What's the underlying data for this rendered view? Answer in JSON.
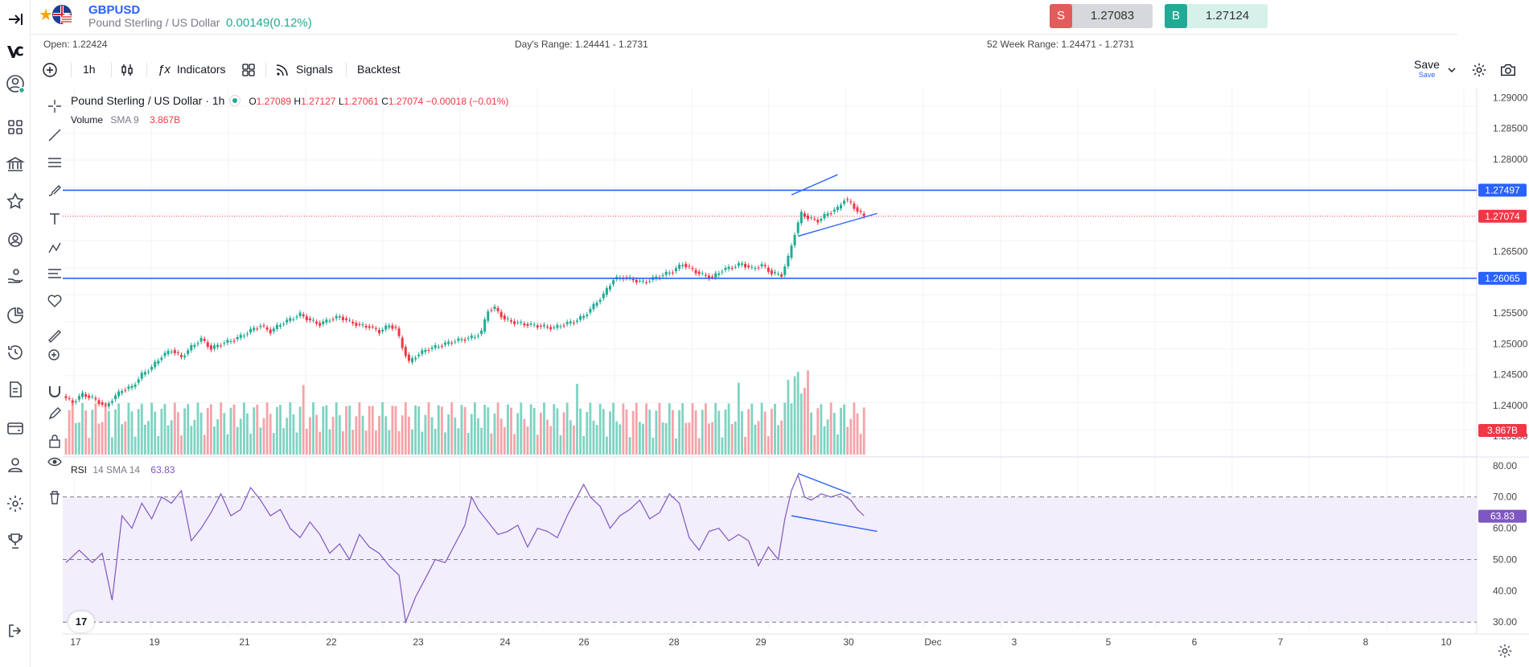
{
  "header": {
    "symbol": "GBPUSD",
    "symbol_name": "Pound Sterling / US Dollar",
    "change": "0.00149(0.12%)",
    "sell": {
      "tag": "S",
      "price": "1.27083"
    },
    "buy": {
      "tag": "B",
      "price": "1.27124"
    }
  },
  "stats": {
    "open": "Open: 1.22424",
    "days_range": "Day's Range: 1.24441 - 1.2731",
    "week52_range": "52 Week Range: 1.24471 - 1.2731"
  },
  "toolbar": {
    "interval": "1h",
    "indicators": "Indicators",
    "signals": "Signals",
    "backtest": "Backtest",
    "save": "Save",
    "save_sub": "Save"
  },
  "legend": {
    "title": "Pound Sterling / US Dollar · 1h",
    "o_label": "O",
    "o": "1.27089",
    "h_label": "H",
    "h": "1.27127",
    "l_label": "L",
    "l": "1.27061",
    "c_label": "C",
    "c": "1.27074",
    "chg": "−0.00018 (−0.01%)",
    "volume_label": "Volume",
    "volume_sma": "SMA 9",
    "volume_value": "3.867B",
    "rsi_label": "RSI",
    "rsi_params": "14 SMA 14",
    "rsi_value": "63.83"
  },
  "colors": {
    "up": "#22ab94",
    "down": "#f23645",
    "up_volume": "#7fd3c2",
    "down_volume": "#f5a3a8",
    "level_line": "#2962ff",
    "rsi_line": "#7e57c2",
    "rsi_band": "#f3eefb"
  },
  "icons": {
    "sidebar": [
      "collapse-icon",
      "logo-icon",
      "account-icon",
      "apps-icon",
      "bank-icon",
      "star-icon",
      "wallet-icon",
      "hand-coins-icon",
      "pie-chart-icon",
      "history-icon",
      "document-icon",
      "card-icon",
      "profile-icon",
      "settings-icon",
      "trophy-icon",
      "logout-icon"
    ],
    "toolbar": [
      "add-icon",
      "candles-icon",
      "fx-icon",
      "layout-icon",
      "signals-icon",
      "dropdown-icon",
      "settings-icon",
      "camera-icon"
    ]
  },
  "chart_data": {
    "type": "line",
    "price_axis": {
      "ticks": [
        "1.29000",
        "1.28500",
        "1.28000",
        "1.26500",
        "1.25500",
        "1.25000",
        "1.24500",
        "1.24000",
        "1.23500"
      ],
      "range": [
        1.232,
        1.2915
      ]
    },
    "rsi_axis": {
      "ticks": [
        "80.00",
        "70.00",
        "60.00",
        "50.00",
        "40.00",
        "30.00"
      ],
      "range": [
        28,
        82
      ]
    },
    "x_labels": [
      "17",
      "19",
      "21",
      "22",
      "23",
      "24",
      "26",
      "28",
      "29",
      "30",
      "Dec",
      "3",
      "5",
      "6",
      "7",
      "8",
      "10"
    ],
    "price_markers": [
      {
        "label": "1.27497",
        "value": 1.27497,
        "kind": "level"
      },
      {
        "label": "1.27074",
        "value": 1.27074,
        "kind": "last"
      },
      {
        "label": "1.26065",
        "value": 1.26065,
        "kind": "level"
      }
    ],
    "volume_marker": "3.867B",
    "rsi_marker": {
      "label": "63.83",
      "value": 63.83
    },
    "rsi_levels": [
      70,
      50,
      30
    ],
    "price_path": [
      [
        0,
        1.2415
      ],
      [
        3,
        1.2405
      ],
      [
        6,
        1.2418
      ],
      [
        9,
        1.2412
      ],
      [
        11,
        1.2405
      ],
      [
        13,
        1.2398
      ],
      [
        15,
        1.241
      ],
      [
        18,
        1.2425
      ],
      [
        21,
        1.243
      ],
      [
        24,
        1.245
      ],
      [
        27,
        1.2462
      ],
      [
        30,
        1.248
      ],
      [
        33,
        1.249
      ],
      [
        36,
        1.2478
      ],
      [
        39,
        1.2495
      ],
      [
        42,
        1.2508
      ],
      [
        45,
        1.2492
      ],
      [
        48,
        1.25
      ],
      [
        51,
        1.2505
      ],
      [
        54,
        1.2512
      ],
      [
        57,
        1.2522
      ],
      [
        60,
        1.253
      ],
      [
        63,
        1.252
      ],
      [
        66,
        1.2532
      ],
      [
        69,
        1.254
      ],
      [
        72,
        1.2548
      ],
      [
        75,
        1.2538
      ],
      [
        78,
        1.2532
      ],
      [
        81,
        1.254
      ],
      [
        84,
        1.2544
      ],
      [
        87,
        1.2536
      ],
      [
        90,
        1.253
      ],
      [
        93,
        1.2528
      ],
      [
        96,
        1.252
      ],
      [
        99,
        1.253
      ],
      [
        101,
        1.2525
      ],
      [
        103,
        1.2495
      ],
      [
        105,
        1.247
      ],
      [
        107,
        1.248
      ],
      [
        110,
        1.249
      ],
      [
        113,
        1.2495
      ],
      [
        116,
        1.25
      ],
      [
        119,
        1.2505
      ],
      [
        122,
        1.2508
      ],
      [
        125,
        1.2512
      ],
      [
        127,
        1.252
      ],
      [
        129,
        1.2555
      ],
      [
        131,
        1.2558
      ],
      [
        134,
        1.254
      ],
      [
        137,
        1.2535
      ],
      [
        140,
        1.2532
      ],
      [
        143,
        1.253
      ],
      [
        146,
        1.2528
      ],
      [
        149,
        1.2526
      ],
      [
        152,
        1.2532
      ],
      [
        155,
        1.2536
      ],
      [
        158,
        1.2545
      ],
      [
        161,
        1.2562
      ],
      [
        164,
        1.258
      ],
      [
        167,
        1.2605
      ],
      [
        170,
        1.2608
      ],
      [
        173,
        1.2604
      ],
      [
        176,
        1.26
      ],
      [
        179,
        1.2606
      ],
      [
        182,
        1.2612
      ],
      [
        185,
        1.2618
      ],
      [
        188,
        1.263
      ],
      [
        191,
        1.262
      ],
      [
        194,
        1.2612
      ],
      [
        197,
        1.2608
      ],
      [
        200,
        1.262
      ],
      [
        203,
        1.2625
      ],
      [
        206,
        1.263
      ],
      [
        209,
        1.2622
      ],
      [
        212,
        1.2628
      ],
      [
        215,
        1.2615
      ],
      [
        218,
        1.2612
      ],
      [
        220,
        1.264
      ],
      [
        222,
        1.268
      ],
      [
        224,
        1.2712
      ],
      [
        226,
        1.2705
      ],
      [
        229,
        1.27
      ],
      [
        232,
        1.2712
      ],
      [
        235,
        1.272
      ],
      [
        237,
        1.2735
      ],
      [
        239,
        1.2728
      ],
      [
        241,
        1.2716
      ],
      [
        243,
        1.2707
      ]
    ],
    "rsi_path": [
      [
        0,
        49
      ],
      [
        4,
        53
      ],
      [
        8,
        49
      ],
      [
        11,
        52
      ],
      [
        14,
        37
      ],
      [
        17,
        64
      ],
      [
        20,
        60
      ],
      [
        23,
        68
      ],
      [
        26,
        63
      ],
      [
        29,
        70
      ],
      [
        32,
        68
      ],
      [
        35,
        72
      ],
      [
        38,
        56
      ],
      [
        41,
        60
      ],
      [
        44,
        65
      ],
      [
        47,
        71
      ],
      [
        50,
        64
      ],
      [
        53,
        66
      ],
      [
        56,
        73
      ],
      [
        59,
        69
      ],
      [
        62,
        64
      ],
      [
        65,
        66
      ],
      [
        68,
        60
      ],
      [
        71,
        57
      ],
      [
        74,
        62
      ],
      [
        77,
        58
      ],
      [
        80,
        52
      ],
      [
        83,
        55
      ],
      [
        86,
        50
      ],
      [
        89,
        58
      ],
      [
        92,
        54
      ],
      [
        95,
        52
      ],
      [
        98,
        48
      ],
      [
        101,
        45
      ],
      [
        103,
        30
      ],
      [
        106,
        38
      ],
      [
        109,
        44
      ],
      [
        112,
        50
      ],
      [
        115,
        49
      ],
      [
        118,
        55
      ],
      [
        121,
        61
      ],
      [
        123,
        70
      ],
      [
        125,
        66
      ],
      [
        128,
        62
      ],
      [
        131,
        58
      ],
      [
        134,
        59
      ],
      [
        137,
        61
      ],
      [
        140,
        54
      ],
      [
        143,
        60
      ],
      [
        146,
        59
      ],
      [
        149,
        57
      ],
      [
        152,
        64
      ],
      [
        155,
        70
      ],
      [
        157,
        74
      ],
      [
        159,
        70
      ],
      [
        162,
        67
      ],
      [
        165,
        60
      ],
      [
        168,
        64
      ],
      [
        171,
        66
      ],
      [
        174,
        69
      ],
      [
        177,
        63
      ],
      [
        180,
        65
      ],
      [
        183,
        71
      ],
      [
        186,
        68
      ],
      [
        189,
        57
      ],
      [
        192,
        53
      ],
      [
        195,
        59
      ],
      [
        198,
        60
      ],
      [
        201,
        56
      ],
      [
        204,
        58
      ],
      [
        207,
        56
      ],
      [
        210,
        48
      ],
      [
        213,
        54
      ],
      [
        216,
        50
      ],
      [
        218,
        63
      ],
      [
        220,
        72
      ],
      [
        222,
        77
      ],
      [
        224,
        70
      ],
      [
        226,
        69
      ],
      [
        229,
        71
      ],
      [
        232,
        70
      ],
      [
        235,
        71
      ],
      [
        238,
        69
      ],
      [
        240,
        66
      ],
      [
        242,
        64
      ]
    ]
  }
}
